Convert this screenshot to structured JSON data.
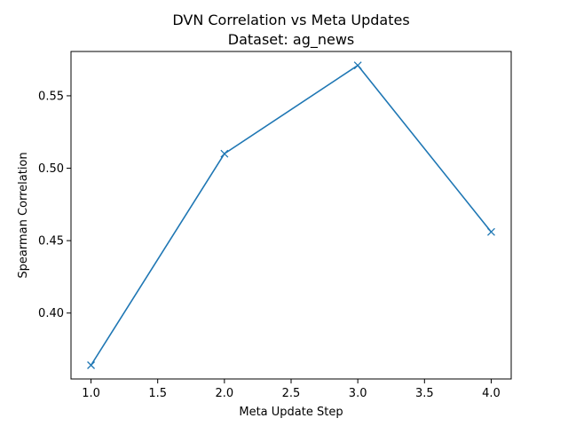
{
  "chart_data": {
    "type": "line",
    "title": "DVN Correlation vs Meta Updates",
    "subtitle": "Dataset: ag_news",
    "xlabel": "Meta Update Step",
    "ylabel": "Spearman Correlation",
    "xlim": [
      0.85,
      4.15
    ],
    "ylim": [
      0.3545,
      0.5806
    ],
    "xticks": [
      1.0,
      1.5,
      2.0,
      2.5,
      3.0,
      3.5,
      4.0
    ],
    "xtick_labels": [
      "1.0",
      "1.5",
      "2.0",
      "2.5",
      "3.0",
      "3.5",
      "4.0"
    ],
    "yticks": [
      0.4,
      0.45,
      0.5,
      0.55
    ],
    "ytick_labels": [
      "0.40",
      "0.45",
      "0.50",
      "0.55"
    ],
    "grid": false,
    "series": [
      {
        "x": [
          1,
          2,
          3,
          4
        ],
        "values": [
          0.364,
          0.51,
          0.571,
          0.456
        ],
        "color": "#1f77b4",
        "marker": "x"
      }
    ]
  }
}
